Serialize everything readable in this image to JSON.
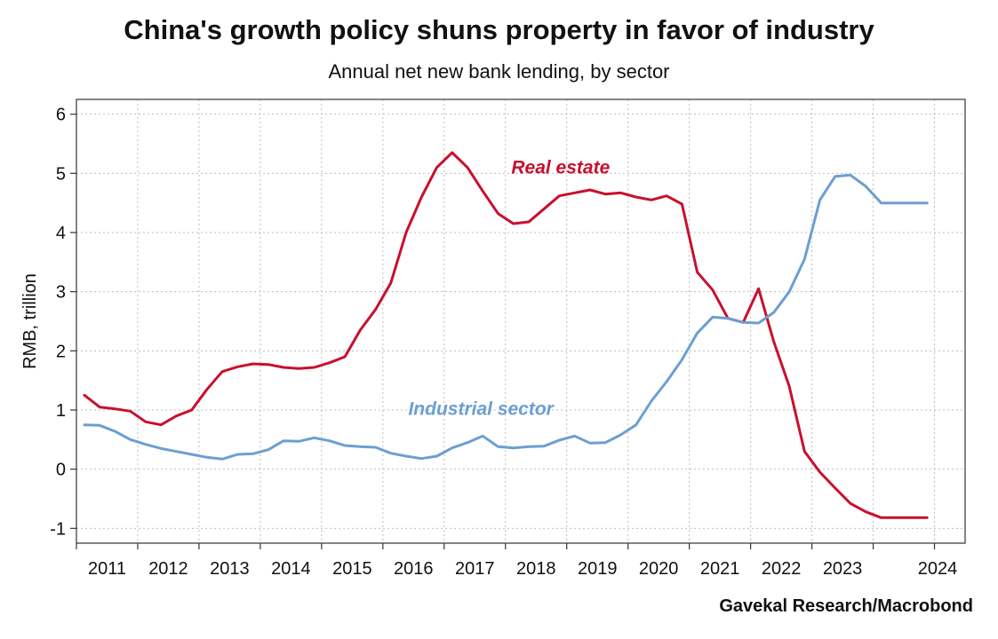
{
  "chart_data": {
    "type": "line",
    "title": "China's growth policy shuns property in favor of industry",
    "subtitle": "Annual net new bank lending, by sector",
    "ylabel": "RMB, trillion",
    "xlabel": "",
    "source": "Gavekal Research/Macrobond",
    "ylim": [
      -1.25,
      6.25
    ],
    "xlim": [
      2010.0,
      2024.5
    ],
    "yticks": [
      "-1",
      "0",
      "1",
      "2",
      "3",
      "4",
      "5",
      "6"
    ],
    "xticks": [
      "2011",
      "2012",
      "2013",
      "2014",
      "2015",
      "2016",
      "2017",
      "2018",
      "2019",
      "2020",
      "2021",
      "2022",
      "2023",
      "2024"
    ],
    "grid": true,
    "colors": {
      "real_estate": "#c8102e",
      "industrial": "#6b9fd1",
      "grid": "#bdbdbd",
      "axis": "#333333"
    },
    "series": [
      {
        "name": "Real estate",
        "key": "real_estate",
        "x": [
          2010.13,
          2010.38,
          2010.63,
          2010.88,
          2011.13,
          2011.38,
          2011.63,
          2011.88,
          2012.13,
          2012.38,
          2012.63,
          2012.88,
          2013.13,
          2013.38,
          2013.63,
          2013.88,
          2014.13,
          2014.38,
          2014.63,
          2014.88,
          2015.13,
          2015.38,
          2015.63,
          2015.88,
          2016.13,
          2016.38,
          2016.63,
          2016.88,
          2017.13,
          2017.38,
          2017.63,
          2017.88,
          2018.13,
          2018.38,
          2018.63,
          2018.88,
          2019.13,
          2019.38,
          2019.63,
          2019.88,
          2020.13,
          2020.38,
          2020.63,
          2020.88,
          2021.13,
          2021.38,
          2021.63,
          2021.88,
          2022.13,
          2022.38,
          2022.63,
          2022.88,
          2023.13,
          2023.38,
          2023.63,
          2023.88
        ],
        "values": [
          1.25,
          1.05,
          1.02,
          0.98,
          0.8,
          0.75,
          0.9,
          1.0,
          1.35,
          1.65,
          1.73,
          1.78,
          1.77,
          1.72,
          1.7,
          1.72,
          1.8,
          1.9,
          2.35,
          2.7,
          3.15,
          4.0,
          4.6,
          5.1,
          5.35,
          5.1,
          4.7,
          4.32,
          4.15,
          4.18,
          4.4,
          4.62,
          4.67,
          4.72,
          4.65,
          4.67,
          4.6,
          4.55,
          4.62,
          4.48,
          3.33,
          3.03,
          2.55,
          2.48,
          3.05,
          2.15,
          1.4,
          0.3,
          -0.05,
          -0.32,
          -0.58,
          -0.72,
          -0.82,
          -0.82,
          -0.82,
          -0.82
        ]
      },
      {
        "name": "Industrial sector",
        "key": "industrial",
        "x": [
          2010.13,
          2010.38,
          2010.63,
          2010.88,
          2011.13,
          2011.38,
          2011.63,
          2011.88,
          2012.13,
          2012.38,
          2012.63,
          2012.88,
          2013.13,
          2013.38,
          2013.63,
          2013.88,
          2014.13,
          2014.38,
          2014.63,
          2014.88,
          2015.13,
          2015.38,
          2015.63,
          2015.88,
          2016.13,
          2016.38,
          2016.63,
          2016.88,
          2017.13,
          2017.38,
          2017.63,
          2017.88,
          2018.13,
          2018.38,
          2018.63,
          2018.88,
          2019.13,
          2019.38,
          2019.63,
          2019.88,
          2020.13,
          2020.38,
          2020.63,
          2020.88,
          2021.13,
          2021.38,
          2021.63,
          2021.88,
          2022.13,
          2022.38,
          2022.63,
          2022.88,
          2023.13,
          2023.38,
          2023.63,
          2023.88
        ],
        "values": [
          0.75,
          0.74,
          0.64,
          0.5,
          0.42,
          0.35,
          0.3,
          0.25,
          0.2,
          0.17,
          0.25,
          0.26,
          0.33,
          0.48,
          0.47,
          0.53,
          0.48,
          0.4,
          0.38,
          0.37,
          0.27,
          0.22,
          0.18,
          0.22,
          0.36,
          0.45,
          0.56,
          0.38,
          0.36,
          0.38,
          0.39,
          0.49,
          0.56,
          0.44,
          0.45,
          0.58,
          0.75,
          1.15,
          1.48,
          1.85,
          2.3,
          2.57,
          2.55,
          2.48,
          2.47,
          2.65,
          3.0,
          3.55,
          4.55,
          4.95,
          4.97,
          4.78,
          4.5,
          4.5,
          4.5,
          4.5
        ]
      }
    ],
    "annotations": [
      {
        "text": "Real estate",
        "series": "real_estate",
        "x": 2017.9,
        "y": 5.0
      },
      {
        "text": "Industrial sector",
        "series": "industrial",
        "x": 2016.6,
        "y": 0.92
      }
    ]
  }
}
